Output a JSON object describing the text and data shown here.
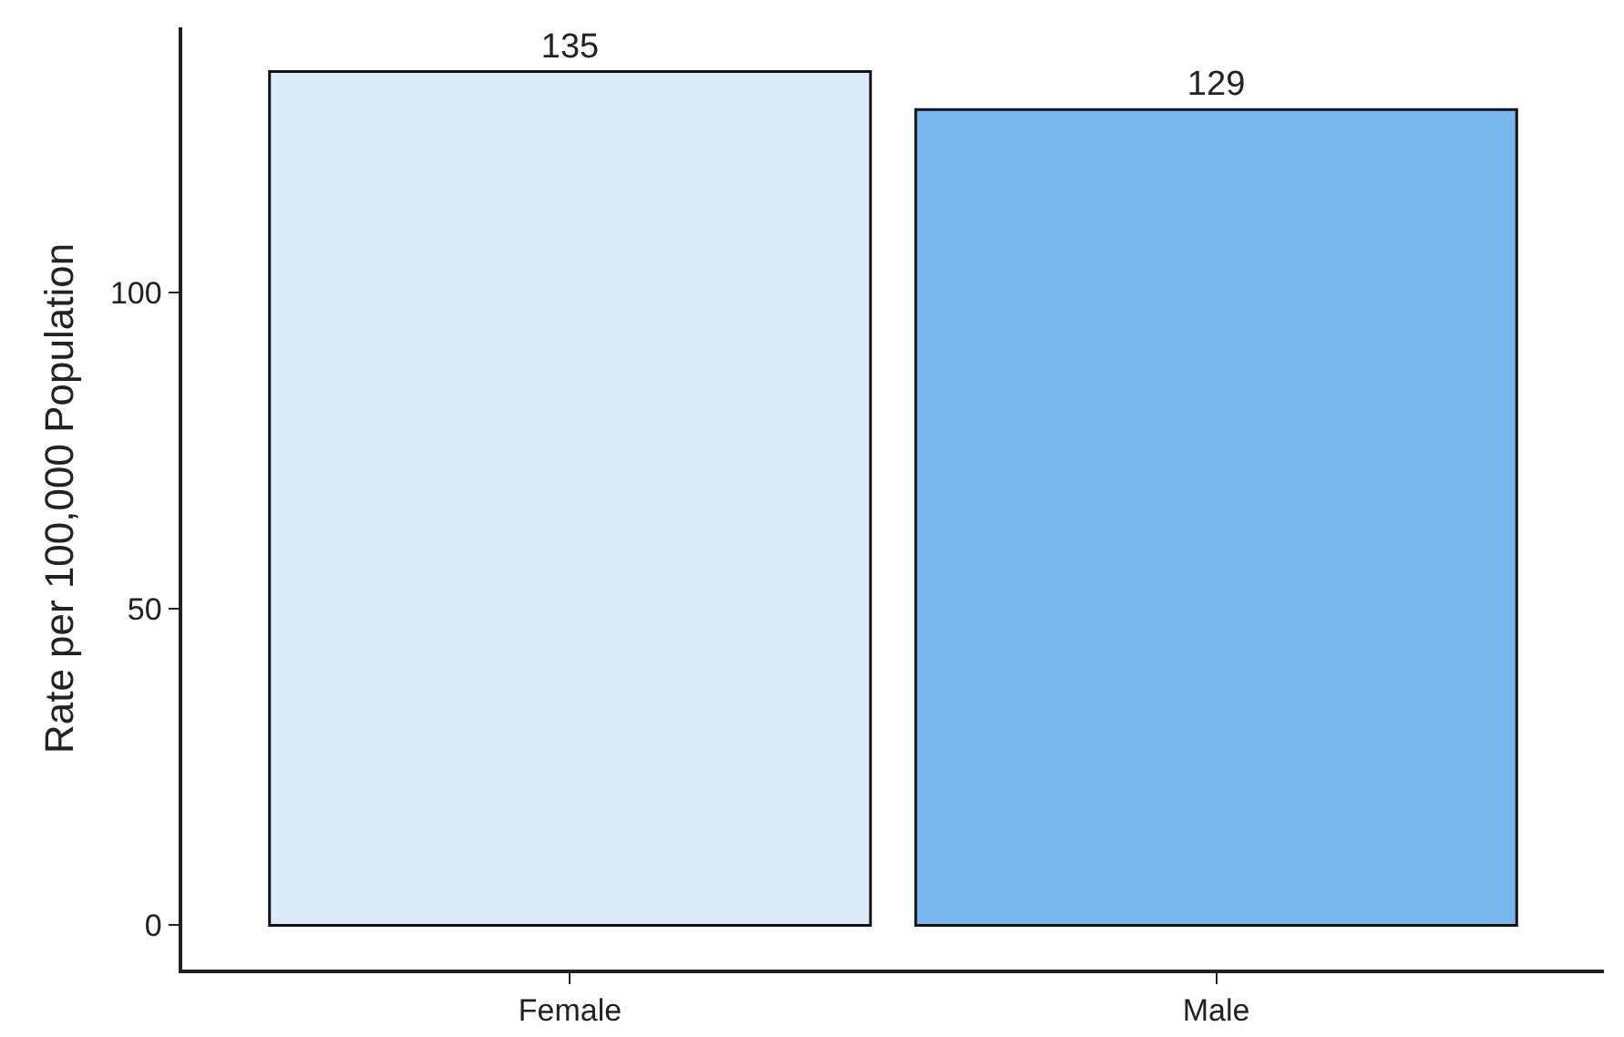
{
  "chart_data": {
    "type": "bar",
    "ylabel": "Rate per 100,000 Population",
    "categories": [
      "Female",
      "Male"
    ],
    "values": [
      135,
      129
    ],
    "colors": [
      "#dcebfa",
      "#7ab6ee"
    ],
    "ylim": [
      -7,
      142
    ],
    "yticks": [
      0,
      50,
      100
    ],
    "data_labels": true,
    "grid": false,
    "legend": false
  }
}
